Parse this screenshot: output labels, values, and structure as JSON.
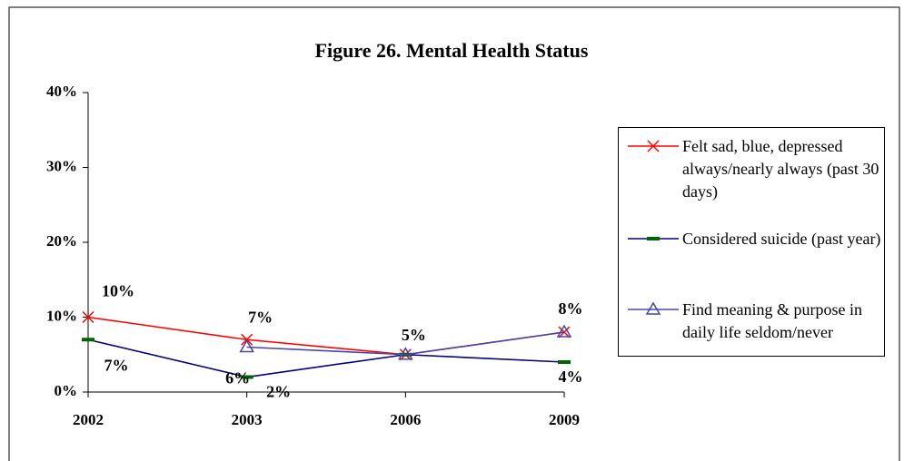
{
  "chart_data": {
    "type": "line",
    "title": "Figure 26.  Mental Health Status",
    "categories": [
      "2002",
      "2003",
      "2006",
      "2009"
    ],
    "series": [
      {
        "name": "Felt sad, blue, depressed always/nearly always (past 30 days)",
        "color": "#ff0000",
        "marker": "x",
        "values": [
          10,
          7,
          5,
          8
        ],
        "value_labels": [
          "10%",
          "7%",
          "5%",
          "8%"
        ]
      },
      {
        "name": "Considered suicide (past year)",
        "color": "#000080",
        "marker": "dash",
        "values": [
          7,
          2,
          5,
          4
        ],
        "value_labels": [
          "7%",
          "2%",
          null,
          "4%"
        ]
      },
      {
        "name": "Find meaning & purpose in daily life seldom/never",
        "color": "#4646a8",
        "marker": "triangle",
        "values": [
          null,
          6,
          5,
          8
        ],
        "value_labels": [
          null,
          "6%",
          null,
          null
        ]
      }
    ],
    "ylim": [
      0,
      40
    ],
    "yticks": [
      {
        "value": 0,
        "label": "0%"
      },
      {
        "value": 10,
        "label": "10%"
      },
      {
        "value": 20,
        "label": "20%"
      },
      {
        "value": 30,
        "label": "30%"
      },
      {
        "value": 40,
        "label": "40%"
      }
    ],
    "grid": false,
    "legend": "right"
  }
}
